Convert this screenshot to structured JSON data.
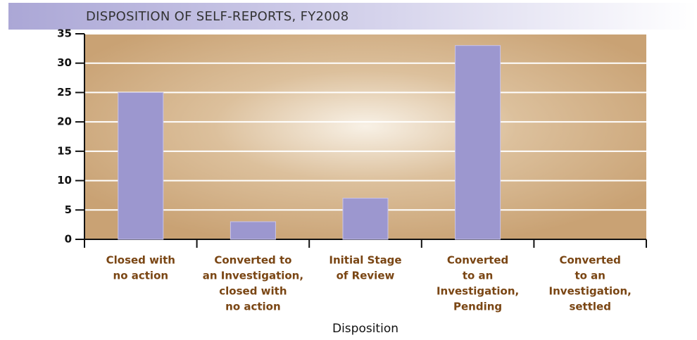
{
  "chart_data": {
    "type": "bar",
    "title": "DISPOSITION OF SELF-REPORTS, FY2008",
    "x_label": "Disposition",
    "categories": [
      [
        "Closed with",
        "no action"
      ],
      [
        "Converted to",
        "an Investigation,",
        "closed with",
        "no action"
      ],
      [
        "Initial Stage",
        "of Review"
      ],
      [
        "Converted",
        "to an",
        "Investigation,",
        "Pending"
      ],
      [
        "Converted",
        "to an",
        "Investigation,",
        "settled"
      ]
    ],
    "values": [
      25,
      3,
      7,
      33,
      0
    ],
    "color": "#9c97cf",
    "ylim": [
      0,
      35
    ],
    "yticks": [
      0,
      5,
      10,
      15,
      20,
      25,
      30,
      35
    ],
    "grid": true
  }
}
